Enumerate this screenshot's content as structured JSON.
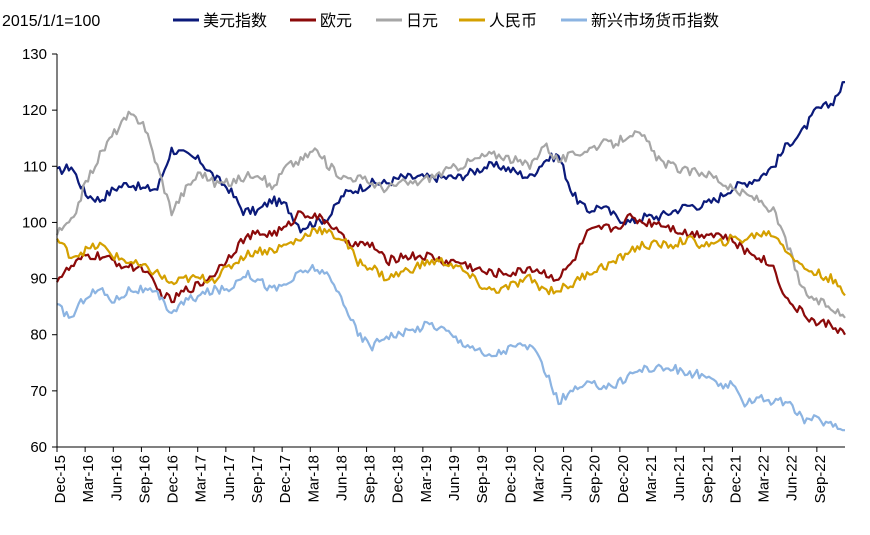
{
  "chart_data": {
    "type": "line",
    "title": "",
    "xlabel": "",
    "ylabel": "",
    "note": "2015/1/1=100",
    "ylim": [
      60,
      130
    ],
    "yticks": [
      60,
      70,
      80,
      90,
      100,
      110,
      120,
      130
    ],
    "grid": false,
    "legend_position": "top",
    "x_tick_labels": [
      "Dec-15",
      "Mar-16",
      "Jun-16",
      "Sep-16",
      "Dec-16",
      "Mar-17",
      "Jun-17",
      "Sep-17",
      "Dec-17",
      "Mar-18",
      "Jun-18",
      "Sep-18",
      "Dec-18",
      "Mar-19",
      "Jun-19",
      "Sep-19",
      "Dec-19",
      "Mar-20",
      "Jun-20",
      "Sep-20",
      "Dec-20",
      "Mar-21",
      "Jun-21",
      "Sep-21",
      "Dec-21",
      "Mar-22",
      "Jun-22",
      "Sep-22"
    ],
    "x": [
      "Dec-15",
      "Feb-16",
      "Mar-16",
      "May-16",
      "Jun-16",
      "Aug-16",
      "Sep-16",
      "Nov-16",
      "Dec-16",
      "Feb-17",
      "Mar-17",
      "May-17",
      "Jun-17",
      "Aug-17",
      "Sep-17",
      "Nov-17",
      "Dec-17",
      "Feb-18",
      "Mar-18",
      "May-18",
      "Jun-18",
      "Aug-18",
      "Sep-18",
      "Nov-18",
      "Dec-18",
      "Feb-19",
      "Mar-19",
      "May-19",
      "Jun-19",
      "Aug-19",
      "Sep-19",
      "Nov-19",
      "Dec-19",
      "Feb-20",
      "Mar-20",
      "May-20",
      "Jun-20",
      "Aug-20",
      "Sep-20",
      "Nov-20",
      "Dec-20",
      "Feb-21",
      "Mar-21",
      "May-21",
      "Jun-21",
      "Aug-21",
      "Sep-21",
      "Nov-21",
      "Dec-21",
      "Feb-22",
      "Mar-22",
      "May-22",
      "Jun-22",
      "Aug-22",
      "Sep-22",
      "Oct-22"
    ],
    "series": [
      {
        "name": "美元指数",
        "color": "#0b1a7a",
        "values": [
          109,
          110,
          105,
          104,
          106,
          107,
          106,
          106,
          113,
          112,
          111,
          108,
          106,
          102,
          102,
          104,
          103,
          99,
          100,
          101,
          105,
          106,
          107,
          107,
          108,
          108,
          108,
          108,
          108,
          109,
          110,
          110,
          109,
          108,
          111,
          112,
          105,
          102,
          103,
          101,
          100,
          101,
          101,
          102,
          103,
          103,
          104,
          106,
          107,
          108,
          110,
          114,
          116,
          120,
          121,
          125
        ]
      },
      {
        "name": "欧元",
        "color": "#8b0a0a",
        "values": [
          90,
          92,
          94,
          94,
          93,
          92,
          92,
          88,
          86,
          88,
          89,
          91,
          94,
          97,
          98,
          98,
          99,
          102,
          101,
          100,
          97,
          96,
          96,
          93,
          94,
          94,
          94,
          93,
          93,
          92,
          91,
          91,
          91,
          92,
          91,
          90,
          93,
          98,
          99,
          99,
          101,
          100,
          100,
          99,
          98,
          98,
          98,
          97,
          95,
          94,
          92,
          86,
          84,
          82,
          82,
          80
        ]
      },
      {
        "name": "日元",
        "color": "#a6a6a6",
        "values": [
          98,
          100,
          107,
          112,
          116,
          119,
          118,
          110,
          102,
          106,
          109,
          107,
          107,
          108,
          109,
          106,
          110,
          111,
          113,
          110,
          108,
          108,
          107,
          106,
          107,
          107,
          108,
          109,
          110,
          111,
          112,
          112,
          111,
          110,
          114,
          111,
          112,
          113,
          114,
          114,
          116,
          115,
          111,
          110,
          109,
          109,
          108,
          106,
          105,
          104,
          102,
          96,
          88,
          86,
          85,
          83
        ]
      },
      {
        "name": "人民币",
        "color": "#d4a000",
        "values": [
          97,
          94,
          95,
          96,
          94,
          93,
          92,
          91,
          89,
          90,
          90,
          90,
          92,
          94,
          95,
          95,
          96,
          97,
          99,
          98,
          97,
          93,
          92,
          90,
          91,
          92,
          93,
          93,
          92,
          90,
          88,
          88,
          89,
          90,
          88,
          88,
          89,
          91,
          92,
          93,
          95,
          96,
          96,
          96,
          97,
          96,
          96,
          97,
          97,
          98,
          98,
          95,
          92,
          91,
          90,
          87
        ]
      },
      {
        "name": "新兴市场货币指数",
        "color": "#8cb4e2",
        "values": [
          85,
          83,
          87,
          88,
          86,
          88,
          88,
          87,
          84,
          86,
          87,
          88,
          88,
          91,
          90,
          88,
          89,
          91,
          92,
          90,
          86,
          80,
          78,
          80,
          80,
          81,
          82,
          81,
          79,
          78,
          76,
          77,
          78,
          78,
          74,
          68,
          70,
          71,
          71,
          71,
          73,
          74,
          74,
          74,
          73,
          73,
          71,
          71,
          68,
          69,
          68,
          68,
          65,
          65,
          64,
          63
        ]
      }
    ]
  }
}
